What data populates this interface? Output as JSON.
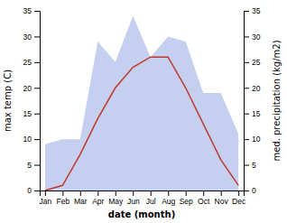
{
  "chart_data": {
    "type": "line",
    "categories": [
      "Jan",
      "Feb",
      "Mar",
      "Apr",
      "May",
      "Jun",
      "Jul",
      "Aug",
      "Sep",
      "Oct",
      "Nov",
      "Dec"
    ],
    "series": [
      {
        "type": "area",
        "axis": "y2",
        "color": "#c5cff0",
        "values": [
          9,
          10,
          10,
          29,
          25,
          34,
          26,
          30,
          29,
          19,
          19,
          11
        ]
      },
      {
        "type": "line",
        "color": "#c0392b",
        "values": [
          0,
          1,
          7,
          14,
          20,
          24,
          26,
          26,
          20,
          13,
          6,
          1
        ]
      }
    ],
    "xlabel": "date (month)",
    "ylabel": "max temp (C)",
    "y2label": "med. precipitation (kg/m2)",
    "ylim": [
      0,
      35
    ],
    "yticks": [
      0,
      5,
      10,
      15,
      20,
      25,
      30,
      35
    ],
    "y2lim": [
      0,
      35
    ],
    "y2ticks": [
      0,
      5,
      10,
      15,
      20,
      25,
      30,
      35
    ]
  }
}
